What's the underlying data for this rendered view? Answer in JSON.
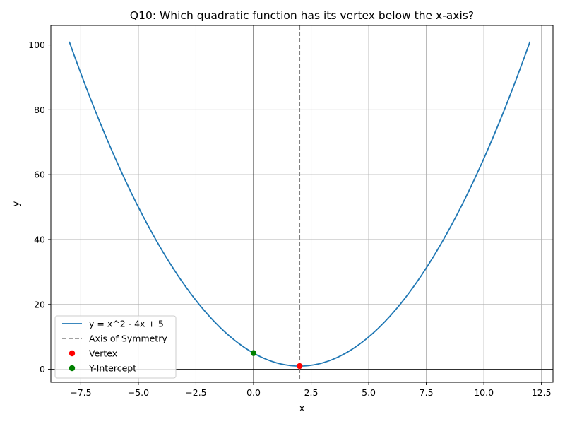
{
  "chart_data": {
    "type": "line",
    "title": "Q10: Which quadratic function has its vertex below the x-axis?",
    "xlabel": "x",
    "ylabel": "y",
    "xlim": [
      -8.8,
      13.0
    ],
    "ylim": [
      -4.0,
      106.0
    ],
    "xticks": [
      -7.5,
      -5.0,
      -2.5,
      0.0,
      2.5,
      5.0,
      7.5,
      10.0,
      12.5
    ],
    "xtick_labels": [
      "−7.5",
      "−5.0",
      "−2.5",
      "0.0",
      "2.5",
      "5.0",
      "7.5",
      "10.0",
      "12.5"
    ],
    "yticks": [
      0,
      20,
      40,
      60,
      80,
      100
    ],
    "ytick_labels": [
      "0",
      "20",
      "40",
      "60",
      "80",
      "100"
    ],
    "grid": true,
    "legend_position": "lower-left",
    "series": [
      {
        "name": "y = x^2 - 4x + 5",
        "kind": "line",
        "color": "#1f77b4",
        "coefficients": {
          "a": 1,
          "b": -4,
          "c": 5
        },
        "x_range": [
          -8,
          12
        ]
      },
      {
        "name": "Axis of Symmetry",
        "kind": "vline",
        "color": "#808080",
        "dashed": true,
        "x": 2
      },
      {
        "name": "Vertex",
        "kind": "point",
        "color": "#ff0000",
        "x": 2,
        "y": 1
      },
      {
        "name": "Y-Intercept",
        "kind": "point",
        "color": "#008000",
        "x": 0,
        "y": 5
      }
    ]
  }
}
